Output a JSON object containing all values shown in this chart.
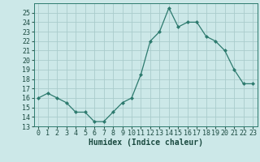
{
  "x": [
    0,
    1,
    2,
    3,
    4,
    5,
    6,
    7,
    8,
    9,
    10,
    11,
    12,
    13,
    14,
    15,
    16,
    17,
    18,
    19,
    20,
    21,
    22,
    23
  ],
  "y": [
    16.0,
    16.5,
    16.0,
    15.5,
    14.5,
    14.5,
    13.5,
    13.5,
    14.5,
    15.5,
    16.0,
    18.5,
    22.0,
    23.0,
    25.5,
    23.5,
    24.0,
    24.0,
    22.5,
    22.0,
    21.0,
    19.0,
    17.5,
    17.5
  ],
  "line_color": "#2d7a6e",
  "marker": "D",
  "marker_size": 2.0,
  "bg_color": "#cce8e8",
  "grid_color": "#aacccc",
  "xlabel": "Humidex (Indice chaleur)",
  "xlabel_fontsize": 7,
  "tick_fontsize": 6,
  "ylim": [
    13,
    26
  ],
  "xlim": [
    -0.5,
    23.5
  ],
  "yticks": [
    13,
    14,
    15,
    16,
    17,
    18,
    19,
    20,
    21,
    22,
    23,
    24,
    25
  ],
  "xticks": [
    0,
    1,
    2,
    3,
    4,
    5,
    6,
    7,
    8,
    9,
    10,
    11,
    12,
    13,
    14,
    15,
    16,
    17,
    18,
    19,
    20,
    21,
    22,
    23
  ]
}
